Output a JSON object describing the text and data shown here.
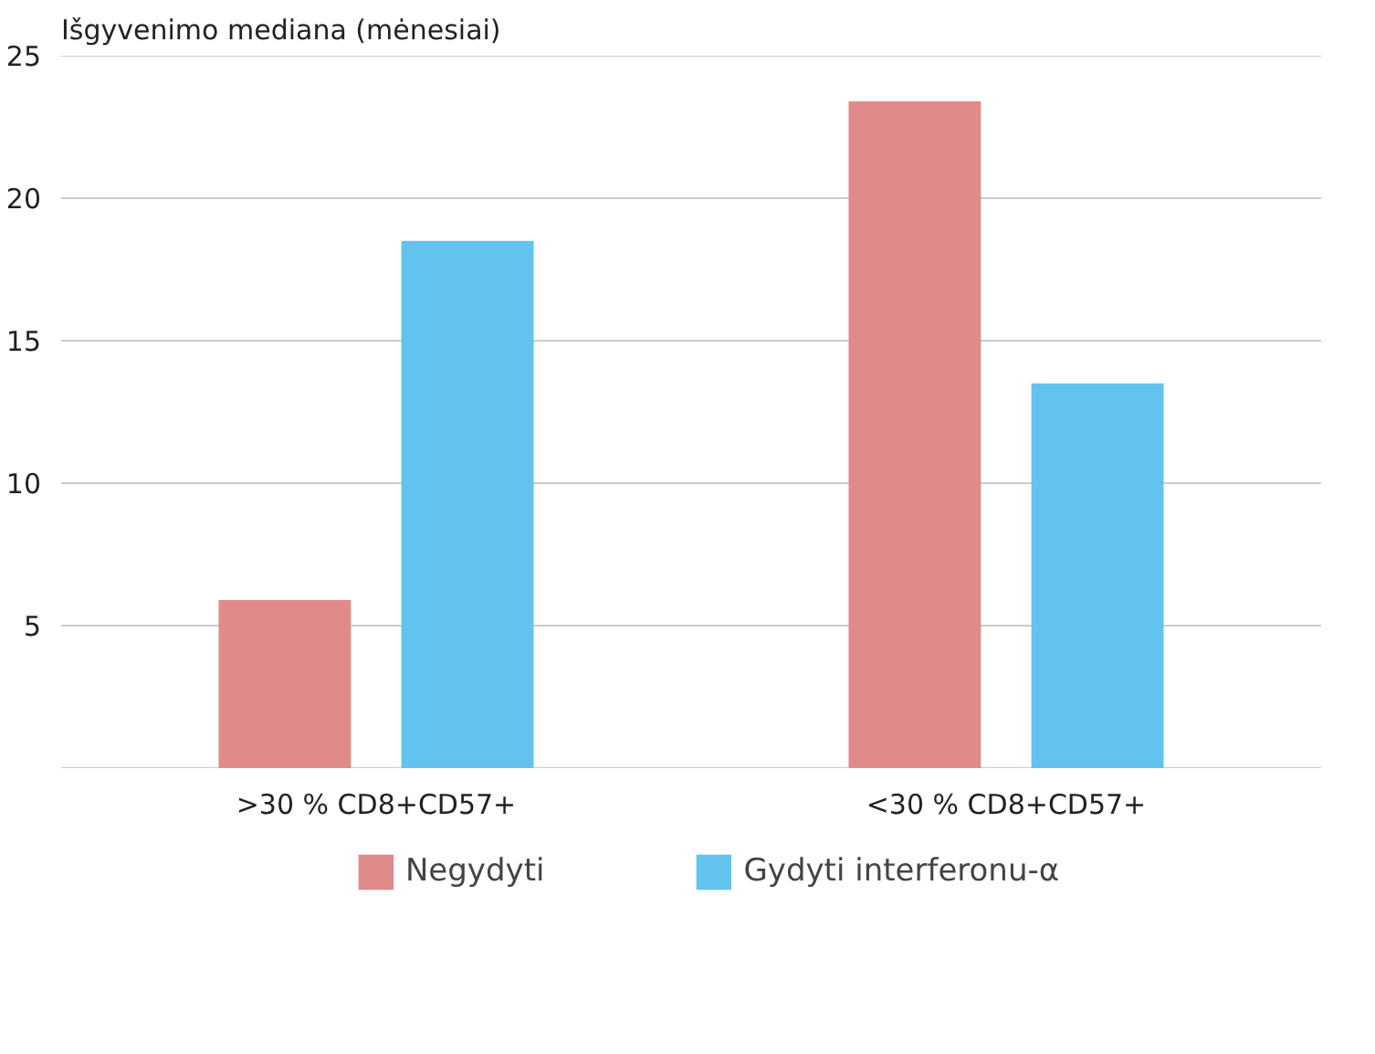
{
  "chart_data": {
    "type": "bar",
    "ylabel": "Išgyvenimo mediana (mėnesiai)",
    "categories": [
      ">30 % CD8+CD57+",
      "<30 % CD8+CD57+"
    ],
    "series": [
      {
        "name": "Negydyti",
        "color": "#e08a8a",
        "values": [
          5.9,
          23.4
        ]
      },
      {
        "name": "Gydyti interferonu-α",
        "color": "#62c3ee",
        "values": [
          18.5,
          13.5
        ]
      }
    ],
    "ylim": [
      0,
      25
    ],
    "yticks": [
      {
        "value": 0,
        "label": null
      },
      5,
      10,
      15,
      20,
      25
    ],
    "grid": "y",
    "legend": "bottom"
  }
}
